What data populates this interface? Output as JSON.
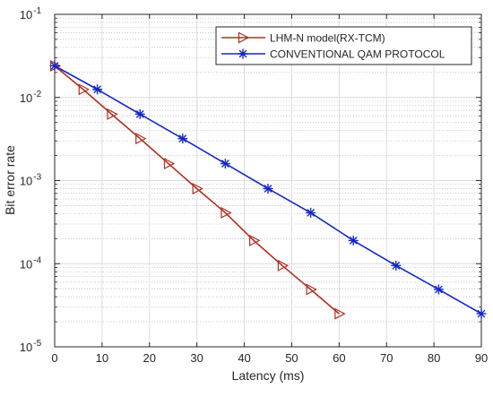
{
  "chart_data": {
    "type": "line",
    "title": "",
    "xlabel": "Latency (ms)",
    "ylabel": "Bit error rate",
    "xlim": [
      0,
      90
    ],
    "ylim_log10": [
      -5,
      -1
    ],
    "yscale": "log",
    "grid": true,
    "minor_grid": true,
    "legend_position": "top-right",
    "x_ticks": [
      0,
      10,
      20,
      30,
      40,
      50,
      60,
      70,
      80,
      90
    ],
    "y_tick_exponents": [
      -5,
      -4,
      -3,
      -2,
      -1
    ],
    "y_tick_base": "10",
    "series": [
      {
        "name": "LHM-N model(RX-TCM)",
        "color": "#b03020",
        "marker": "triangle-right",
        "x": [
          0,
          6,
          12,
          18,
          24,
          30,
          36,
          42,
          48,
          54,
          60
        ],
        "y": [
          0.024,
          0.0125,
          0.0063,
          0.0032,
          0.0016,
          0.0008,
          0.00041,
          0.00019,
          9.5e-05,
          4.9e-05,
          2.5e-05
        ]
      },
      {
        "name": "CONVENTIONAL QAM PROTOCOL",
        "color": "#1428c8",
        "marker": "asterisk",
        "x": [
          0,
          9,
          18,
          27,
          36,
          45,
          54,
          63,
          72,
          81,
          90
        ],
        "y": [
          0.024,
          0.0125,
          0.0063,
          0.0032,
          0.0016,
          0.0008,
          0.00041,
          0.00019,
          9.5e-05,
          4.9e-05,
          2.5e-05
        ]
      }
    ]
  }
}
